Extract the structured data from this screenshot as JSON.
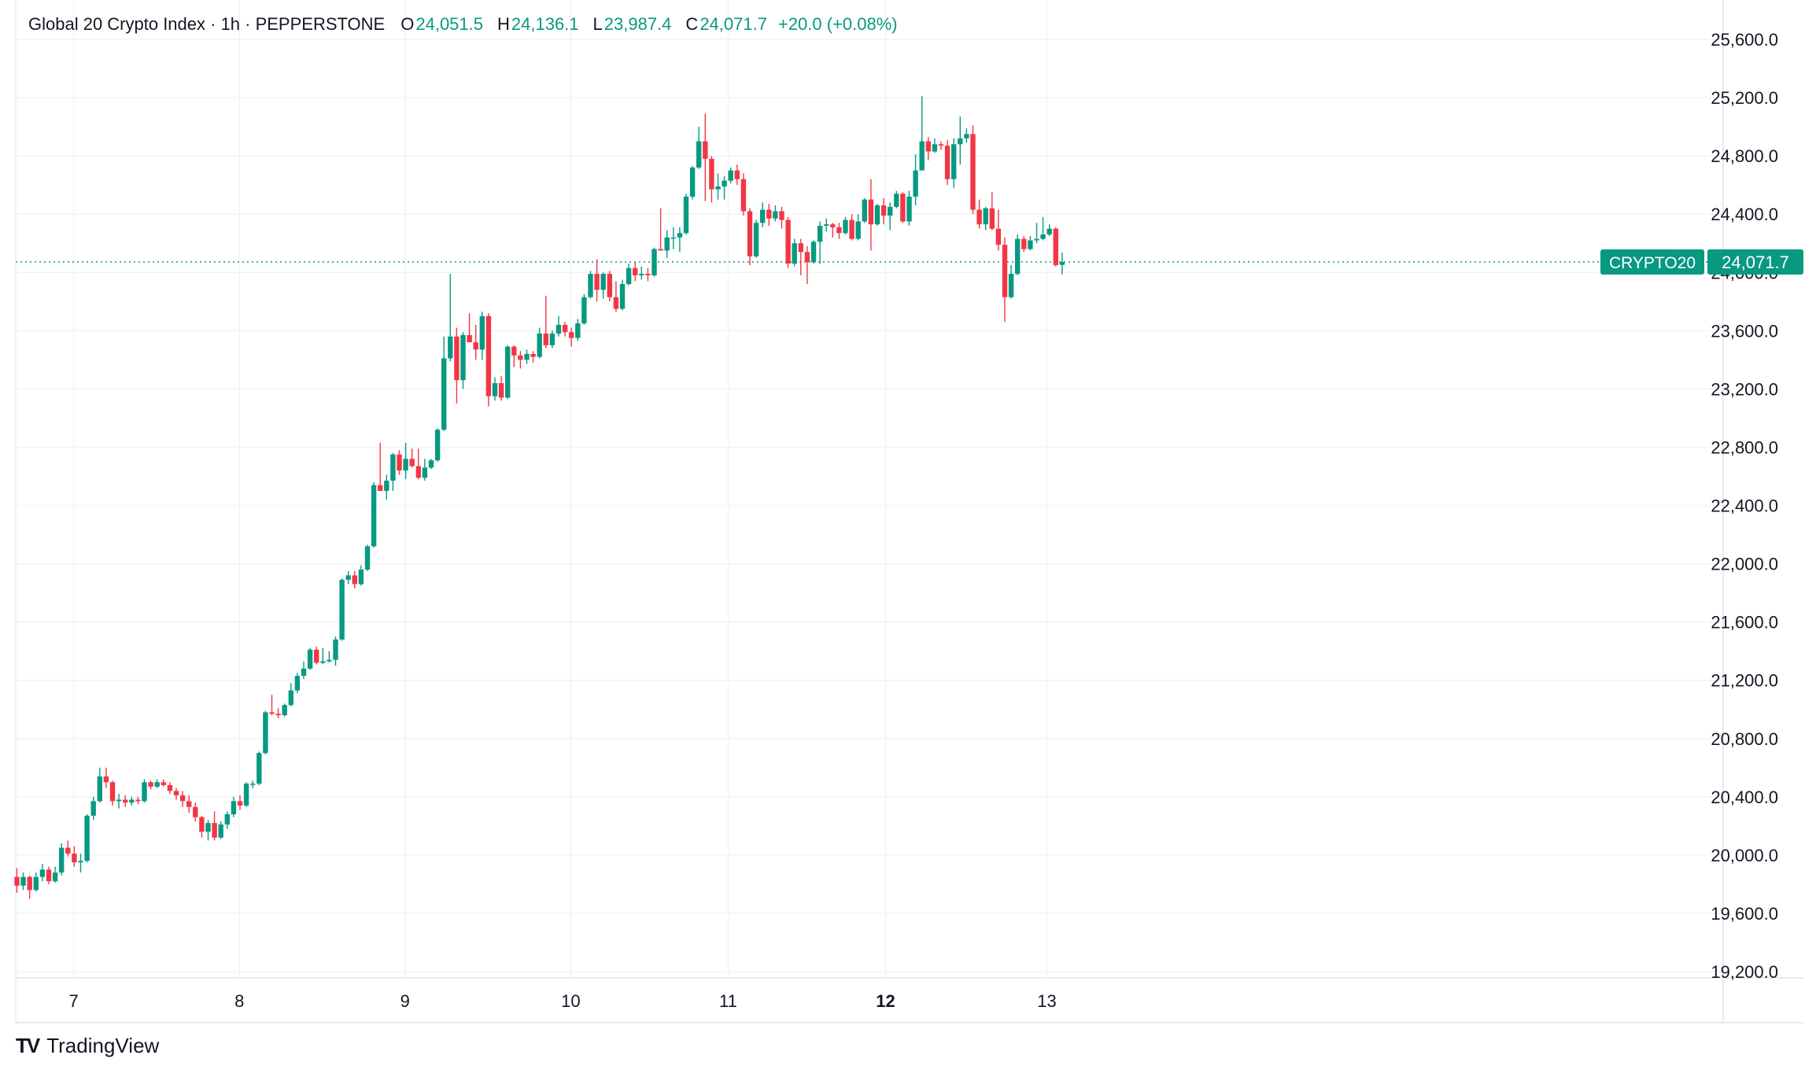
{
  "header": {
    "symbol_text": "Global 20 Crypto Index · 1h · PEPPERSTONE",
    "open_label": "O",
    "open_value": "24,051.5",
    "high_label": "H",
    "high_value": "24,136.1",
    "low_label": "L",
    "low_value": "23,987.4",
    "close_label": "C",
    "close_value": "24,071.7",
    "change_text": "+20.0 (+0.08%)"
  },
  "price_tag": {
    "symbol": "CRYPTO20",
    "value": "24,071.7",
    "price": 24071.7
  },
  "brand": {
    "logo_text": "TV",
    "name": "TradingView"
  },
  "colors": {
    "up": "#089981",
    "down": "#f23645",
    "grid": "#f0f3fa",
    "text": "#131722"
  },
  "chart_data": {
    "type": "candlestick",
    "title": "Global 20 Crypto Index · 1h · PEPPERSTONE",
    "interval": "1h",
    "ylim": [
      19000,
      25800
    ],
    "yticks": [
      19200,
      19600,
      20000,
      20400,
      20800,
      21200,
      21600,
      22000,
      22400,
      22800,
      23200,
      23600,
      24000,
      24400,
      24800,
      25200,
      25600
    ],
    "ytick_labels": [
      "19,200.0",
      "19,600.0",
      "20,000.0",
      "20,400.0",
      "20,800.0",
      "21,200.0",
      "21,600.0",
      "22,000.0",
      "22,400.0",
      "22,800.0",
      "23,200.0",
      "23,600.0",
      "24,000.0",
      "24,400.0",
      "24,800.0",
      "25,200.0",
      "25,600.0"
    ],
    "xticks": [
      {
        "label": "7",
        "t": 8.9,
        "bold": false
      },
      {
        "label": "8",
        "t": 34.9,
        "bold": false
      },
      {
        "label": "9",
        "t": 60.9,
        "bold": false
      },
      {
        "label": "10",
        "t": 86.9,
        "bold": false
      },
      {
        "label": "11",
        "t": 111.6,
        "bold": false
      },
      {
        "label": "12",
        "t": 136.3,
        "bold": true
      },
      {
        "label": "13",
        "t": 161.6,
        "bold": false
      }
    ],
    "xlim": [
      -0.5,
      178
    ],
    "candles": [
      {
        "o": 19850,
        "h": 19910,
        "l": 19740,
        "c": 19790
      },
      {
        "o": 19790,
        "h": 19880,
        "l": 19760,
        "c": 19850
      },
      {
        "o": 19850,
        "h": 19860,
        "l": 19700,
        "c": 19760
      },
      {
        "o": 19760,
        "h": 19880,
        "l": 19750,
        "c": 19850
      },
      {
        "o": 19850,
        "h": 19940,
        "l": 19820,
        "c": 19900
      },
      {
        "o": 19900,
        "h": 19920,
        "l": 19800,
        "c": 19820
      },
      {
        "o": 19820,
        "h": 19920,
        "l": 19810,
        "c": 19880
      },
      {
        "o": 19880,
        "h": 20080,
        "l": 19860,
        "c": 20050
      },
      {
        "o": 20050,
        "h": 20100,
        "l": 19990,
        "c": 20010
      },
      {
        "o": 20010,
        "h": 20060,
        "l": 19920,
        "c": 19950
      },
      {
        "o": 19950,
        "h": 20010,
        "l": 19880,
        "c": 19960
      },
      {
        "o": 19960,
        "h": 20280,
        "l": 19950,
        "c": 20270
      },
      {
        "o": 20270,
        "h": 20400,
        "l": 20240,
        "c": 20370
      },
      {
        "o": 20370,
        "h": 20600,
        "l": 20360,
        "c": 20540
      },
      {
        "o": 20540,
        "h": 20600,
        "l": 20460,
        "c": 20500
      },
      {
        "o": 20500,
        "h": 20510,
        "l": 20340,
        "c": 20370
      },
      {
        "o": 20370,
        "h": 20420,
        "l": 20320,
        "c": 20380
      },
      {
        "o": 20380,
        "h": 20410,
        "l": 20330,
        "c": 20360
      },
      {
        "o": 20360,
        "h": 20400,
        "l": 20340,
        "c": 20380
      },
      {
        "o": 20380,
        "h": 20400,
        "l": 20350,
        "c": 20370
      },
      {
        "o": 20370,
        "h": 20520,
        "l": 20360,
        "c": 20500
      },
      {
        "o": 20500,
        "h": 20510,
        "l": 20450,
        "c": 20470
      },
      {
        "o": 20470,
        "h": 20520,
        "l": 20460,
        "c": 20500
      },
      {
        "o": 20500,
        "h": 20520,
        "l": 20470,
        "c": 20480
      },
      {
        "o": 20480,
        "h": 20500,
        "l": 20420,
        "c": 20440
      },
      {
        "o": 20440,
        "h": 20460,
        "l": 20380,
        "c": 20410
      },
      {
        "o": 20410,
        "h": 20440,
        "l": 20330,
        "c": 20370
      },
      {
        "o": 20370,
        "h": 20410,
        "l": 20290,
        "c": 20330
      },
      {
        "o": 20330,
        "h": 20360,
        "l": 20230,
        "c": 20260
      },
      {
        "o": 20260,
        "h": 20270,
        "l": 20120,
        "c": 20160
      },
      {
        "o": 20160,
        "h": 20240,
        "l": 20100,
        "c": 20220
      },
      {
        "o": 20220,
        "h": 20300,
        "l": 20100,
        "c": 20120
      },
      {
        "o": 20120,
        "h": 20230,
        "l": 20110,
        "c": 20210
      },
      {
        "o": 20210,
        "h": 20300,
        "l": 20180,
        "c": 20280
      },
      {
        "o": 20280,
        "h": 20400,
        "l": 20260,
        "c": 20370
      },
      {
        "o": 20370,
        "h": 20410,
        "l": 20310,
        "c": 20340
      },
      {
        "o": 20340,
        "h": 20500,
        "l": 20330,
        "c": 20490
      },
      {
        "o": 20490,
        "h": 20510,
        "l": 20460,
        "c": 20490
      },
      {
        "o": 20490,
        "h": 20710,
        "l": 20480,
        "c": 20700
      },
      {
        "o": 20700,
        "h": 20990,
        "l": 20690,
        "c": 20980
      },
      {
        "o": 20980,
        "h": 21100,
        "l": 20960,
        "c": 20970
      },
      {
        "o": 20970,
        "h": 21010,
        "l": 20940,
        "c": 20960
      },
      {
        "o": 20960,
        "h": 21040,
        "l": 20950,
        "c": 21030
      },
      {
        "o": 21030,
        "h": 21180,
        "l": 21020,
        "c": 21130
      },
      {
        "o": 21130,
        "h": 21250,
        "l": 21110,
        "c": 21230
      },
      {
        "o": 21230,
        "h": 21330,
        "l": 21210,
        "c": 21280
      },
      {
        "o": 21280,
        "h": 21420,
        "l": 21270,
        "c": 21410
      },
      {
        "o": 21410,
        "h": 21430,
        "l": 21310,
        "c": 21320
      },
      {
        "o": 21320,
        "h": 21420,
        "l": 21310,
        "c": 21330
      },
      {
        "o": 21330,
        "h": 21400,
        "l": 21320,
        "c": 21340
      },
      {
        "o": 21340,
        "h": 21500,
        "l": 21300,
        "c": 21480
      },
      {
        "o": 21480,
        "h": 21900,
        "l": 21470,
        "c": 21890
      },
      {
        "o": 21890,
        "h": 21950,
        "l": 21860,
        "c": 21920
      },
      {
        "o": 21920,
        "h": 21950,
        "l": 21830,
        "c": 21860
      },
      {
        "o": 21860,
        "h": 21990,
        "l": 21850,
        "c": 21960
      },
      {
        "o": 21960,
        "h": 22130,
        "l": 21950,
        "c": 22120
      },
      {
        "o": 22120,
        "h": 22560,
        "l": 22110,
        "c": 22540
      },
      {
        "o": 22540,
        "h": 22830,
        "l": 22520,
        "c": 22500
      },
      {
        "o": 22500,
        "h": 22610,
        "l": 22440,
        "c": 22570
      },
      {
        "o": 22570,
        "h": 22760,
        "l": 22500,
        "c": 22750
      },
      {
        "o": 22750,
        "h": 22780,
        "l": 22610,
        "c": 22640
      },
      {
        "o": 22640,
        "h": 22830,
        "l": 22580,
        "c": 22720
      },
      {
        "o": 22720,
        "h": 22790,
        "l": 22660,
        "c": 22670
      },
      {
        "o": 22670,
        "h": 22790,
        "l": 22580,
        "c": 22590
      },
      {
        "o": 22590,
        "h": 22720,
        "l": 22570,
        "c": 22660
      },
      {
        "o": 22660,
        "h": 22720,
        "l": 22650,
        "c": 22710
      },
      {
        "o": 22710,
        "h": 22930,
        "l": 22700,
        "c": 22920
      },
      {
        "o": 22920,
        "h": 23560,
        "l": 22910,
        "c": 23410
      },
      {
        "o": 23410,
        "h": 23990,
        "l": 23390,
        "c": 23560
      },
      {
        "o": 23560,
        "h": 23620,
        "l": 23100,
        "c": 23260
      },
      {
        "o": 23260,
        "h": 23590,
        "l": 23200,
        "c": 23570
      },
      {
        "o": 23570,
        "h": 23720,
        "l": 23520,
        "c": 23520
      },
      {
        "o": 23520,
        "h": 23640,
        "l": 23400,
        "c": 23470
      },
      {
        "o": 23470,
        "h": 23730,
        "l": 23400,
        "c": 23700
      },
      {
        "o": 23700,
        "h": 23720,
        "l": 23080,
        "c": 23150
      },
      {
        "o": 23150,
        "h": 23280,
        "l": 23120,
        "c": 23240
      },
      {
        "o": 23240,
        "h": 23290,
        "l": 23120,
        "c": 23140
      },
      {
        "o": 23140,
        "h": 23500,
        "l": 23130,
        "c": 23490
      },
      {
        "o": 23490,
        "h": 23500,
        "l": 23350,
        "c": 23430
      },
      {
        "o": 23430,
        "h": 23460,
        "l": 23340,
        "c": 23400
      },
      {
        "o": 23400,
        "h": 23470,
        "l": 23370,
        "c": 23440
      },
      {
        "o": 23440,
        "h": 23460,
        "l": 23380,
        "c": 23420
      },
      {
        "o": 23420,
        "h": 23620,
        "l": 23410,
        "c": 23580
      },
      {
        "o": 23580,
        "h": 23840,
        "l": 23480,
        "c": 23500
      },
      {
        "o": 23500,
        "h": 23600,
        "l": 23480,
        "c": 23580
      },
      {
        "o": 23580,
        "h": 23700,
        "l": 23560,
        "c": 23640
      },
      {
        "o": 23640,
        "h": 23660,
        "l": 23560,
        "c": 23590
      },
      {
        "o": 23590,
        "h": 23620,
        "l": 23490,
        "c": 23550
      },
      {
        "o": 23550,
        "h": 23680,
        "l": 23530,
        "c": 23650
      },
      {
        "o": 23650,
        "h": 23850,
        "l": 23640,
        "c": 23830
      },
      {
        "o": 23830,
        "h": 24010,
        "l": 23820,
        "c": 23990
      },
      {
        "o": 23990,
        "h": 24090,
        "l": 23800,
        "c": 23880
      },
      {
        "o": 23880,
        "h": 24000,
        "l": 23820,
        "c": 23990
      },
      {
        "o": 23990,
        "h": 24010,
        "l": 23800,
        "c": 23830
      },
      {
        "o": 23830,
        "h": 23940,
        "l": 23730,
        "c": 23750
      },
      {
        "o": 23750,
        "h": 23950,
        "l": 23740,
        "c": 23920
      },
      {
        "o": 23920,
        "h": 24060,
        "l": 23910,
        "c": 24030
      },
      {
        "o": 24030,
        "h": 24070,
        "l": 23940,
        "c": 23980
      },
      {
        "o": 23980,
        "h": 24040,
        "l": 23950,
        "c": 23990
      },
      {
        "o": 23990,
        "h": 24030,
        "l": 23940,
        "c": 23980
      },
      {
        "o": 23980,
        "h": 24170,
        "l": 23970,
        "c": 24160
      },
      {
        "o": 24160,
        "h": 24440,
        "l": 24150,
        "c": 24150
      },
      {
        "o": 24150,
        "h": 24290,
        "l": 24100,
        "c": 24240
      },
      {
        "o": 24240,
        "h": 24310,
        "l": 24160,
        "c": 24240
      },
      {
        "o": 24240,
        "h": 24310,
        "l": 24140,
        "c": 24270
      },
      {
        "o": 24270,
        "h": 24540,
        "l": 24260,
        "c": 24520
      },
      {
        "o": 24520,
        "h": 24730,
        "l": 24500,
        "c": 24720
      },
      {
        "o": 24720,
        "h": 25000,
        "l": 24710,
        "c": 24900
      },
      {
        "o": 24900,
        "h": 25090,
        "l": 24490,
        "c": 24780
      },
      {
        "o": 24780,
        "h": 24800,
        "l": 24480,
        "c": 24570
      },
      {
        "o": 24570,
        "h": 24680,
        "l": 24500,
        "c": 24590
      },
      {
        "o": 24590,
        "h": 24660,
        "l": 24500,
        "c": 24630
      },
      {
        "o": 24630,
        "h": 24720,
        "l": 24610,
        "c": 24700
      },
      {
        "o": 24700,
        "h": 24740,
        "l": 24600,
        "c": 24640
      },
      {
        "o": 24640,
        "h": 24680,
        "l": 24390,
        "c": 24420
      },
      {
        "o": 24420,
        "h": 24440,
        "l": 24050,
        "c": 24110
      },
      {
        "o": 24110,
        "h": 24360,
        "l": 24100,
        "c": 24340
      },
      {
        "o": 24340,
        "h": 24480,
        "l": 24310,
        "c": 24430
      },
      {
        "o": 24430,
        "h": 24470,
        "l": 24320,
        "c": 24370
      },
      {
        "o": 24370,
        "h": 24460,
        "l": 24350,
        "c": 24420
      },
      {
        "o": 24420,
        "h": 24450,
        "l": 24300,
        "c": 24360
      },
      {
        "o": 24360,
        "h": 24380,
        "l": 24030,
        "c": 24060
      },
      {
        "o": 24060,
        "h": 24230,
        "l": 24040,
        "c": 24200
      },
      {
        "o": 24200,
        "h": 24230,
        "l": 23980,
        "c": 24140
      },
      {
        "o": 24140,
        "h": 24180,
        "l": 23920,
        "c": 24070
      },
      {
        "o": 24070,
        "h": 24220,
        "l": 24060,
        "c": 24210
      },
      {
        "o": 24210,
        "h": 24350,
        "l": 24060,
        "c": 24320
      },
      {
        "o": 24320,
        "h": 24370,
        "l": 24280,
        "c": 24330
      },
      {
        "o": 24330,
        "h": 24340,
        "l": 24240,
        "c": 24310
      },
      {
        "o": 24310,
        "h": 24340,
        "l": 24230,
        "c": 24270
      },
      {
        "o": 24270,
        "h": 24380,
        "l": 24260,
        "c": 24360
      },
      {
        "o": 24360,
        "h": 24400,
        "l": 24220,
        "c": 24230
      },
      {
        "o": 24230,
        "h": 24400,
        "l": 24220,
        "c": 24350
      },
      {
        "o": 24350,
        "h": 24510,
        "l": 24340,
        "c": 24500
      },
      {
        "o": 24500,
        "h": 24640,
        "l": 24150,
        "c": 24330
      },
      {
        "o": 24330,
        "h": 24470,
        "l": 24320,
        "c": 24460
      },
      {
        "o": 24460,
        "h": 24510,
        "l": 24330,
        "c": 24390
      },
      {
        "o": 24390,
        "h": 24480,
        "l": 24290,
        "c": 24450
      },
      {
        "o": 24450,
        "h": 24560,
        "l": 24440,
        "c": 24540
      },
      {
        "o": 24540,
        "h": 24550,
        "l": 24340,
        "c": 24350
      },
      {
        "o": 24350,
        "h": 24560,
        "l": 24320,
        "c": 24520
      },
      {
        "o": 24520,
        "h": 24810,
        "l": 24460,
        "c": 24700
      },
      {
        "o": 24700,
        "h": 25210,
        "l": 24700,
        "c": 24900
      },
      {
        "o": 24900,
        "h": 24930,
        "l": 24770,
        "c": 24830
      },
      {
        "o": 24830,
        "h": 24920,
        "l": 24820,
        "c": 24880
      },
      {
        "o": 24880,
        "h": 24900,
        "l": 24840,
        "c": 24870
      },
      {
        "o": 24870,
        "h": 24910,
        "l": 24600,
        "c": 24640
      },
      {
        "o": 24640,
        "h": 24920,
        "l": 24580,
        "c": 24880
      },
      {
        "o": 24880,
        "h": 25070,
        "l": 24740,
        "c": 24920
      },
      {
        "o": 24920,
        "h": 24990,
        "l": 24890,
        "c": 24950
      },
      {
        "o": 24950,
        "h": 25010,
        "l": 24400,
        "c": 24430
      },
      {
        "o": 24430,
        "h": 24500,
        "l": 24300,
        "c": 24330
      },
      {
        "o": 24330,
        "h": 24450,
        "l": 24290,
        "c": 24440
      },
      {
        "o": 24440,
        "h": 24550,
        "l": 24290,
        "c": 24300
      },
      {
        "o": 24300,
        "h": 24430,
        "l": 24150,
        "c": 24190
      },
      {
        "o": 24190,
        "h": 24240,
        "l": 23660,
        "c": 23830
      },
      {
        "o": 23830,
        "h": 24050,
        "l": 23820,
        "c": 23990
      },
      {
        "o": 23990,
        "h": 24260,
        "l": 23980,
        "c": 24230
      },
      {
        "o": 24230,
        "h": 24250,
        "l": 24140,
        "c": 24160
      },
      {
        "o": 24160,
        "h": 24250,
        "l": 24150,
        "c": 24220
      },
      {
        "o": 24220,
        "h": 24340,
        "l": 24200,
        "c": 24230
      },
      {
        "o": 24230,
        "h": 24380,
        "l": 24220,
        "c": 24260
      },
      {
        "o": 24260,
        "h": 24330,
        "l": 24250,
        "c": 24300
      },
      {
        "o": 24300,
        "h": 24310,
        "l": 24040,
        "c": 24050
      },
      {
        "o": 24051.5,
        "h": 24136.1,
        "l": 23987.4,
        "c": 24071.7
      }
    ]
  }
}
